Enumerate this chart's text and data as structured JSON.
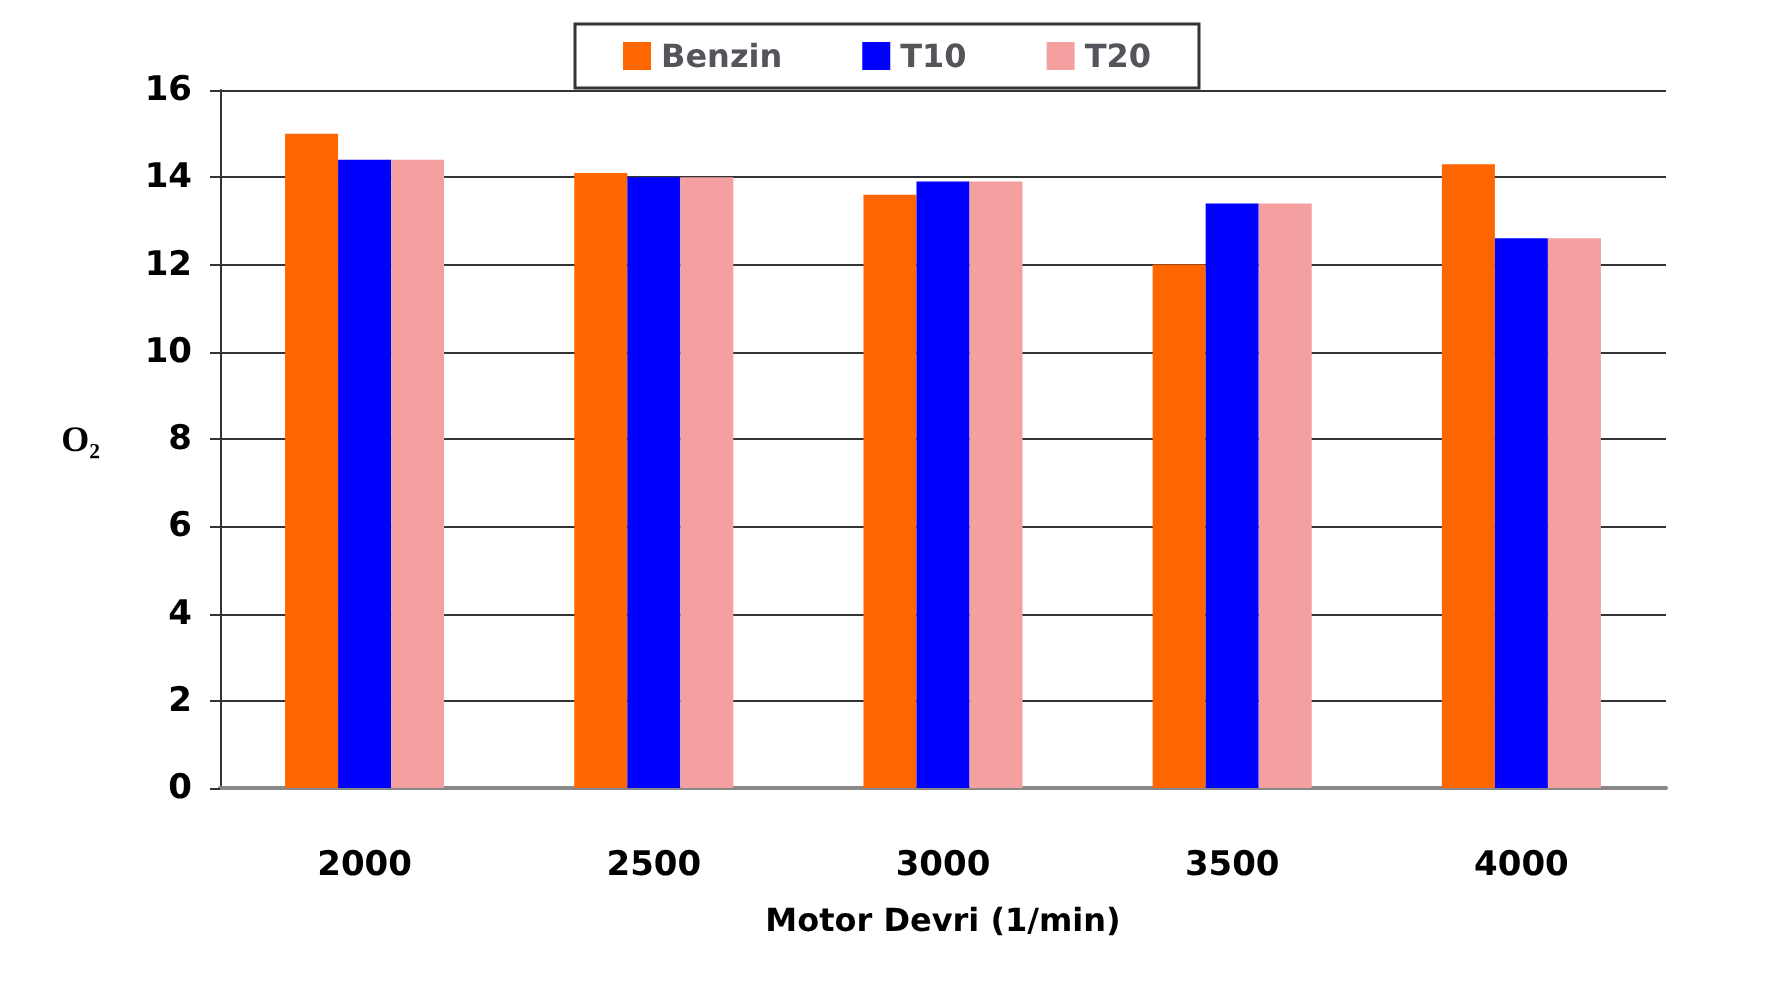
{
  "chart_data": {
    "type": "bar",
    "xlabel": "Motor Devri (1/min)",
    "ylabel": "O₂",
    "categories": [
      "2000",
      "2500",
      "3000",
      "3500",
      "4000"
    ],
    "series": [
      {
        "name": "Benzin",
        "color": "#ff6600",
        "values": [
          15.0,
          14.1,
          13.6,
          12.0,
          14.3
        ]
      },
      {
        "name": "T10",
        "color": "#0000ff",
        "values": [
          14.4,
          14.0,
          13.9,
          13.4,
          12.6
        ]
      },
      {
        "name": "T20",
        "color": "#f4a0a0",
        "values": [
          14.4,
          14.0,
          13.9,
          13.4,
          12.6
        ]
      }
    ],
    "ylim": [
      0,
      16
    ],
    "yticks": [
      0,
      2,
      4,
      6,
      8,
      10,
      12,
      14,
      16
    ],
    "grid": "y",
    "legend": "top"
  }
}
